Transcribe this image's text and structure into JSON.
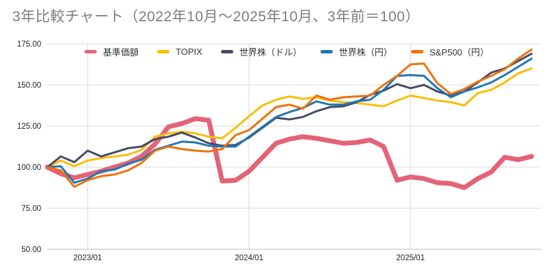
{
  "title": "3年比較チャート（2022年10月～2025年10月、3年前＝100）",
  "chart_data": {
    "type": "line",
    "title": "3年比較チャート（2022年10月～2025年10月、3年前＝100）",
    "x_period_start": "2022/10",
    "x_period_end": "2025/10",
    "x_unit": "month",
    "baseline_note": "3年前＝100",
    "grid": true,
    "legend_position": "top",
    "ylim": [
      50,
      175
    ],
    "y_ticks": [
      175,
      150,
      125,
      100,
      75,
      50
    ],
    "y_tick_labels": [
      "175.00",
      "150.00",
      "125.00",
      "100.00",
      "75.00",
      "50.00"
    ],
    "x_tick_labels": [
      "2023/01",
      "2024/01",
      "2025/01"
    ],
    "x_tick_indices": [
      3,
      15,
      27
    ],
    "n_points": 37,
    "series": [
      {
        "name": "基準価額",
        "color": "#e56377",
        "width": 7,
        "values": [
          100,
          96,
          93.5,
          95.5,
          97.5,
          100,
          102.5,
          106.5,
          114,
          124.5,
          126.5,
          129.5,
          128.5,
          91.5,
          92,
          97.5,
          106,
          114.5,
          117,
          118.5,
          117.5,
          116,
          114.5,
          115,
          116.5,
          112.5,
          92,
          94,
          93,
          90.5,
          90,
          87.5,
          93,
          97,
          106,
          104.5,
          106.5
        ]
      },
      {
        "name": "TOPIX",
        "color": "#fbbc04",
        "width": 3,
        "values": [
          100,
          104,
          100.5,
          104,
          105.5,
          106.5,
          107.5,
          110.5,
          118.5,
          120.5,
          121.5,
          120.5,
          118.5,
          117.5,
          124,
          131,
          137.5,
          141,
          143,
          141.5,
          142.5,
          140.5,
          139.5,
          139,
          138,
          137,
          140.5,
          143.5,
          142,
          140.5,
          139.5,
          137.5,
          145,
          147,
          151.5,
          157,
          160
        ]
      },
      {
        "name": "世界株（ドル）",
        "color": "#454a67",
        "width": 3,
        "values": [
          100,
          106.5,
          103,
          110,
          106.5,
          109,
          111.5,
          112.5,
          117,
          118.5,
          121,
          118,
          114.5,
          113,
          113.5,
          118,
          124,
          130,
          129,
          130.5,
          134,
          136.5,
          137,
          139.5,
          144,
          146.5,
          150.5,
          148,
          150,
          146,
          143.5,
          146,
          151.5,
          157.5,
          160,
          164.5,
          169
        ]
      },
      {
        "name": "世界株（円）",
        "color": "#2176b5",
        "width": 3,
        "values": [
          100,
          100.5,
          90.5,
          93,
          97.5,
          98.5,
          102,
          104.5,
          110.5,
          113,
          115.5,
          115,
          113,
          112.5,
          112.5,
          118.5,
          124.5,
          130.5,
          133.5,
          136,
          140,
          138,
          138,
          140,
          141,
          147,
          155.5,
          156,
          155.5,
          148,
          142.5,
          146,
          148.5,
          151.5,
          156,
          161,
          166
        ]
      },
      {
        "name": "S&P500（円）",
        "color": "#ee720b",
        "width": 3,
        "values": [
          100,
          98,
          88,
          92,
          94.5,
          95.5,
          98,
          102.5,
          110,
          112.5,
          111,
          110,
          109.5,
          111,
          119.5,
          122.5,
          129.5,
          136.5,
          138,
          135.5,
          143.5,
          141,
          142.5,
          143,
          143.5,
          150,
          155.5,
          162.5,
          163,
          151,
          144.5,
          147.5,
          152,
          155.5,
          159.5,
          166,
          171.5
        ]
      }
    ],
    "style": {
      "grid_color": "#d9d9d9",
      "axis_color": "#b7b7b7",
      "title_color": "#7d7d7d",
      "tick_label_color": "#222222"
    }
  }
}
